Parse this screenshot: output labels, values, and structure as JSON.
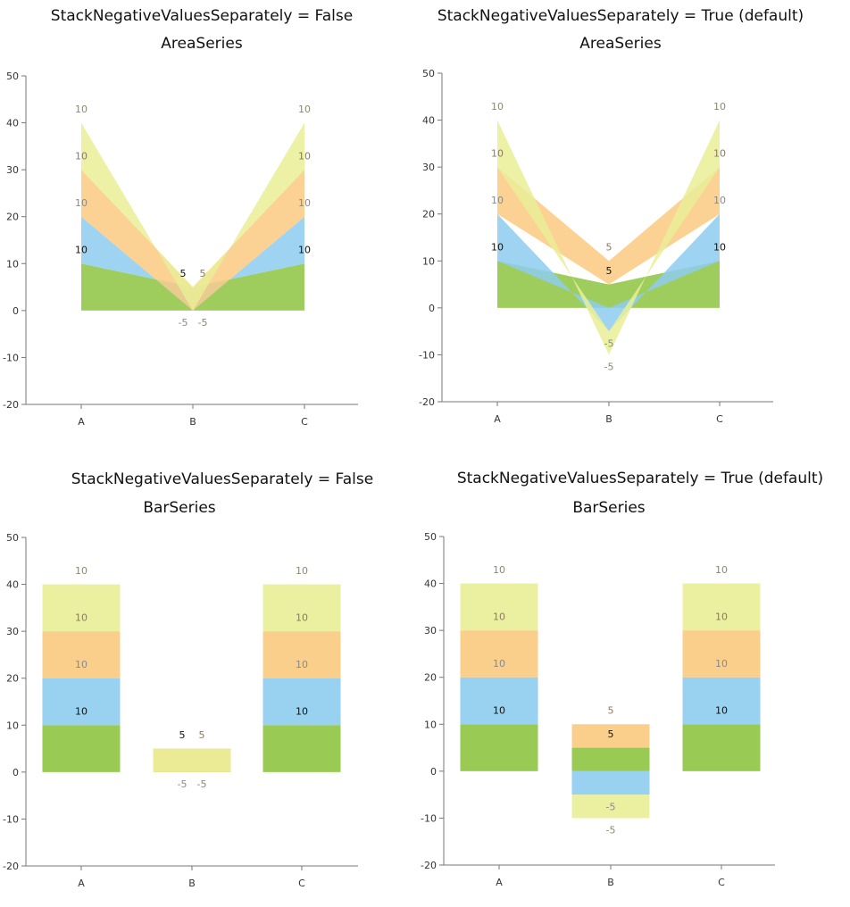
{
  "chart_data": [
    {
      "type": "area",
      "title": "StackNegativeValuesSeparately = False",
      "subtitle": "AreaSeries",
      "stack_negative_separately": false,
      "categories": [
        "A",
        "B",
        "C"
      ],
      "ylim": [
        -20,
        50
      ],
      "yticks": [
        -20,
        -10,
        0,
        10,
        20,
        30,
        40,
        50
      ],
      "series": [
        {
          "values": [
            10,
            5,
            10
          ],
          "color": "#8DC441"
        },
        {
          "values": [
            10,
            -5,
            10
          ],
          "color": "#8DCDEE"
        },
        {
          "values": [
            10,
            5,
            10
          ],
          "color": "#FACA80"
        },
        {
          "values": [
            10,
            -5,
            10
          ],
          "color": "#E9EE96"
        }
      ]
    },
    {
      "type": "area",
      "title": "StackNegativeValuesSeparately = True (default)",
      "subtitle": "AreaSeries",
      "stack_negative_separately": true,
      "categories": [
        "A",
        "B",
        "C"
      ],
      "ylim": [
        -20,
        50
      ],
      "yticks": [
        -20,
        -10,
        0,
        10,
        20,
        30,
        40,
        50
      ],
      "series": [
        {
          "values": [
            10,
            5,
            10
          ],
          "color": "#8DC441"
        },
        {
          "values": [
            10,
            -5,
            10
          ],
          "color": "#8DCDEE"
        },
        {
          "values": [
            10,
            5,
            10
          ],
          "color": "#FACA80"
        },
        {
          "values": [
            10,
            -5,
            10
          ],
          "color": "#E9EE96"
        }
      ]
    },
    {
      "type": "bar",
      "title": "StackNegativeValuesSeparately = False",
      "subtitle": "BarSeries",
      "stack_negative_separately": false,
      "categories": [
        "A",
        "B",
        "C"
      ],
      "ylim": [
        -20,
        50
      ],
      "yticks": [
        -20,
        -10,
        0,
        10,
        20,
        30,
        40,
        50
      ],
      "series": [
        {
          "values": [
            10,
            5,
            10
          ],
          "color": "#8DC441"
        },
        {
          "values": [
            10,
            -5,
            10
          ],
          "color": "#8DCDEE"
        },
        {
          "values": [
            10,
            5,
            10
          ],
          "color": "#FACA80"
        },
        {
          "values": [
            10,
            -5,
            10
          ],
          "color": "#E9EE96"
        }
      ]
    },
    {
      "type": "bar",
      "title": "StackNegativeValuesSeparately = True (default)",
      "subtitle": "BarSeries",
      "stack_negative_separately": true,
      "categories": [
        "A",
        "B",
        "C"
      ],
      "ylim": [
        -20,
        50
      ],
      "yticks": [
        -20,
        -10,
        0,
        10,
        20,
        30,
        40,
        50
      ],
      "series": [
        {
          "values": [
            10,
            5,
            10
          ],
          "color": "#8DC441"
        },
        {
          "values": [
            10,
            -5,
            10
          ],
          "color": "#8DCDEE"
        },
        {
          "values": [
            10,
            5,
            10
          ],
          "color": "#FACA80"
        },
        {
          "values": [
            10,
            -5,
            10
          ],
          "color": "#E9EE96"
        }
      ]
    }
  ]
}
